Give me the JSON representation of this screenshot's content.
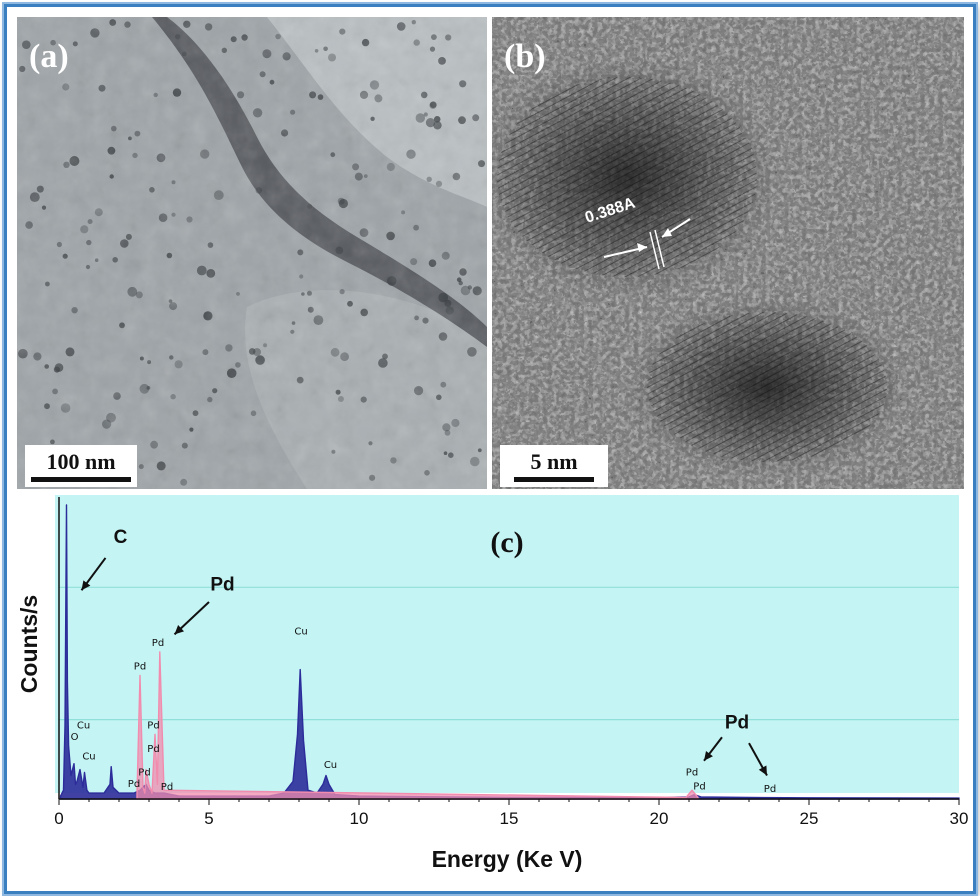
{
  "figure": {
    "panel_a": {
      "label": "(a)",
      "scale_bar": "100 nm"
    },
    "panel_b": {
      "label": "(b)",
      "scale_bar": "5 nm",
      "lattice_annotation": "0.388A"
    },
    "panel_c": {
      "label": "(c)"
    }
  },
  "chart_data": {
    "type": "line",
    "title": "",
    "xlabel": "Energy (Ke V)",
    "ylabel": "Counts/s",
    "xlim": [
      0,
      30
    ],
    "xticks": [
      0,
      5,
      10,
      15,
      20,
      25,
      30
    ],
    "grid": "horizontal",
    "background_color": "#c4f4f4",
    "series": [
      {
        "color": "#2c2c9a",
        "x": [
          0.05,
          0.15,
          0.2,
          0.25,
          0.28,
          0.32,
          0.4,
          0.5,
          0.55,
          0.6,
          0.7,
          0.8,
          0.85,
          0.93,
          1.0,
          1.2,
          1.5,
          1.7,
          1.74,
          1.8,
          2.0,
          2.5,
          2.7,
          2.9,
          3.0,
          3.2,
          3.5,
          4.0,
          5.0,
          6.0,
          7.0,
          7.5,
          7.8,
          7.95,
          8.04,
          8.15,
          8.3,
          8.6,
          8.8,
          8.9,
          9.0,
          9.2,
          10.0,
          15.0,
          20.0,
          21.0,
          21.18,
          21.4,
          23.0,
          25.0,
          30.0
        ],
        "y": [
          1,
          3,
          25,
          100,
          40,
          18,
          8,
          12,
          5,
          6,
          10,
          4,
          9,
          3,
          2,
          2,
          2,
          5,
          11,
          4,
          2,
          2,
          3,
          5,
          3,
          2,
          2,
          1,
          1,
          1,
          1,
          2,
          6,
          22,
          44,
          20,
          3,
          2,
          5,
          8,
          5,
          1.5,
          1,
          0.5,
          0.5,
          0.7,
          1.5,
          0.7,
          0.5,
          0.4,
          0.3
        ]
      },
      {
        "color": "#f28cae",
        "x": [
          2.6,
          2.7,
          2.8,
          2.86,
          2.9,
          3.0,
          3.1,
          3.2,
          3.28,
          3.36,
          3.5,
          20.9,
          21.1,
          21.3
        ],
        "y": [
          2,
          42,
          4,
          2,
          10,
          5,
          2,
          22,
          5,
          50,
          3,
          0.5,
          3,
          0.5
        ]
      }
    ],
    "peak_labels": [
      {
        "text": "O",
        "x": 0.52,
        "y": 20
      },
      {
        "text": "Cu",
        "x": 0.82,
        "y": 24
      },
      {
        "text": "Cu",
        "x": 1.0,
        "y": 13.5
      },
      {
        "text": "Pd",
        "x": 2.7,
        "y": 44
      },
      {
        "text": "Pd",
        "x": 3.3,
        "y": 52
      },
      {
        "text": "Pd",
        "x": 3.15,
        "y": 24
      },
      {
        "text": "Pd",
        "x": 3.15,
        "y": 16
      },
      {
        "text": "Pd",
        "x": 2.85,
        "y": 8
      },
      {
        "text": "Pd",
        "x": 2.5,
        "y": 4
      },
      {
        "text": "Pd",
        "x": 3.6,
        "y": 3
      },
      {
        "text": "Cu",
        "x": 8.07,
        "y": 56
      },
      {
        "text": "Cu",
        "x": 9.05,
        "y": 10.5
      },
      {
        "text": "Pd",
        "x": 21.1,
        "y": 8
      },
      {
        "text": "Pd",
        "x": 21.35,
        "y": 3.3
      },
      {
        "text": "Pd",
        "x": 23.7,
        "y": 2.4
      }
    ],
    "element_callouts": [
      {
        "text": "C",
        "x": 2.05,
        "y": 87
      },
      {
        "text": "Pd",
        "x": 5.45,
        "y": 71
      },
      {
        "text": "Pd",
        "x": 22.6,
        "y": 24
      }
    ]
  }
}
